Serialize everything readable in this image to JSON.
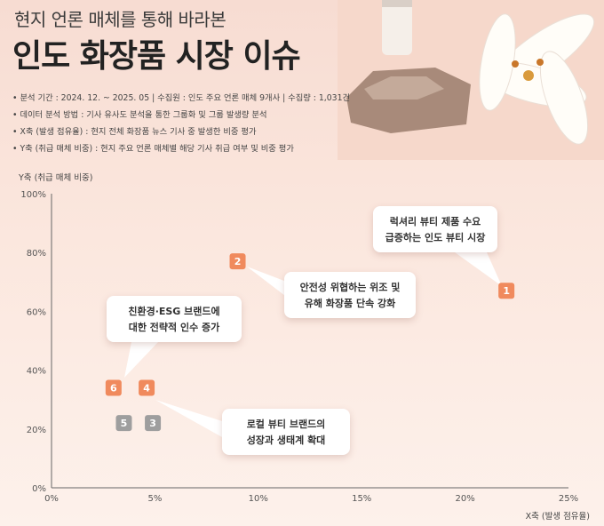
{
  "header": {
    "subtitle": "현지 언론 매체를 통해 바라본",
    "title": "인도 화장품 시장 이슈"
  },
  "notes": [
    "분석 기간 : 2024. 12. ~ 2025. 05  |  수집원 : 인도 주요 언론 매체 9개사  |  수집량 : 1,031건",
    "데이터 분석 방법 : 기사 유사도 분석을 통한 그룹화 및 그룹 발생량 분석",
    "X축 (발생 점유율) : 현지 전체 화장품 뉴스 기사 중 발생한 비중 평가",
    "Y축 (취급 매체 비중) : 현지 주요 언론 매체별 해당 기사 취급 여부 및 비중 평가"
  ],
  "colors": {
    "highlight": "#f08a5d",
    "muted": "#9e9e9e",
    "background": "#fbe7de"
  },
  "chart_data": {
    "type": "scatter",
    "xlabel": "X축 (발생 점유율)",
    "ylabel": "Y축 (취급 매체 비중)",
    "xlim": [
      0,
      25
    ],
    "ylim": [
      0,
      100
    ],
    "x_ticks": [
      "0%",
      "5%",
      "10%",
      "15%",
      "20%",
      "25%"
    ],
    "y_ticks": [
      "0%",
      "20%",
      "40%",
      "60%",
      "80%",
      "100%"
    ],
    "grid": false,
    "points": [
      {
        "label": "1",
        "x": 22.0,
        "y": 67,
        "highlight": true
      },
      {
        "label": "2",
        "x": 9.0,
        "y": 77,
        "highlight": true
      },
      {
        "label": "3",
        "x": 4.9,
        "y": 22,
        "highlight": false
      },
      {
        "label": "4",
        "x": 4.6,
        "y": 34,
        "highlight": true
      },
      {
        "label": "5",
        "x": 3.5,
        "y": 22,
        "highlight": false
      },
      {
        "label": "6",
        "x": 3.0,
        "y": 34,
        "highlight": true
      }
    ],
    "annotations": [
      {
        "point": "1",
        "text": "럭셔리 뷰티 제품 수요\n급증하는 인도 뷰티 시장"
      },
      {
        "point": "2",
        "text": "안전성 위협하는 위조 및\n유해 화장품 단속 강화"
      },
      {
        "point": "6",
        "text": "친환경·ESG 브랜드에\n대한 전략적 인수 증가"
      },
      {
        "point": "4",
        "text": "로컬 뷰티 브랜드의\n성장과 생태계 확대"
      }
    ]
  }
}
